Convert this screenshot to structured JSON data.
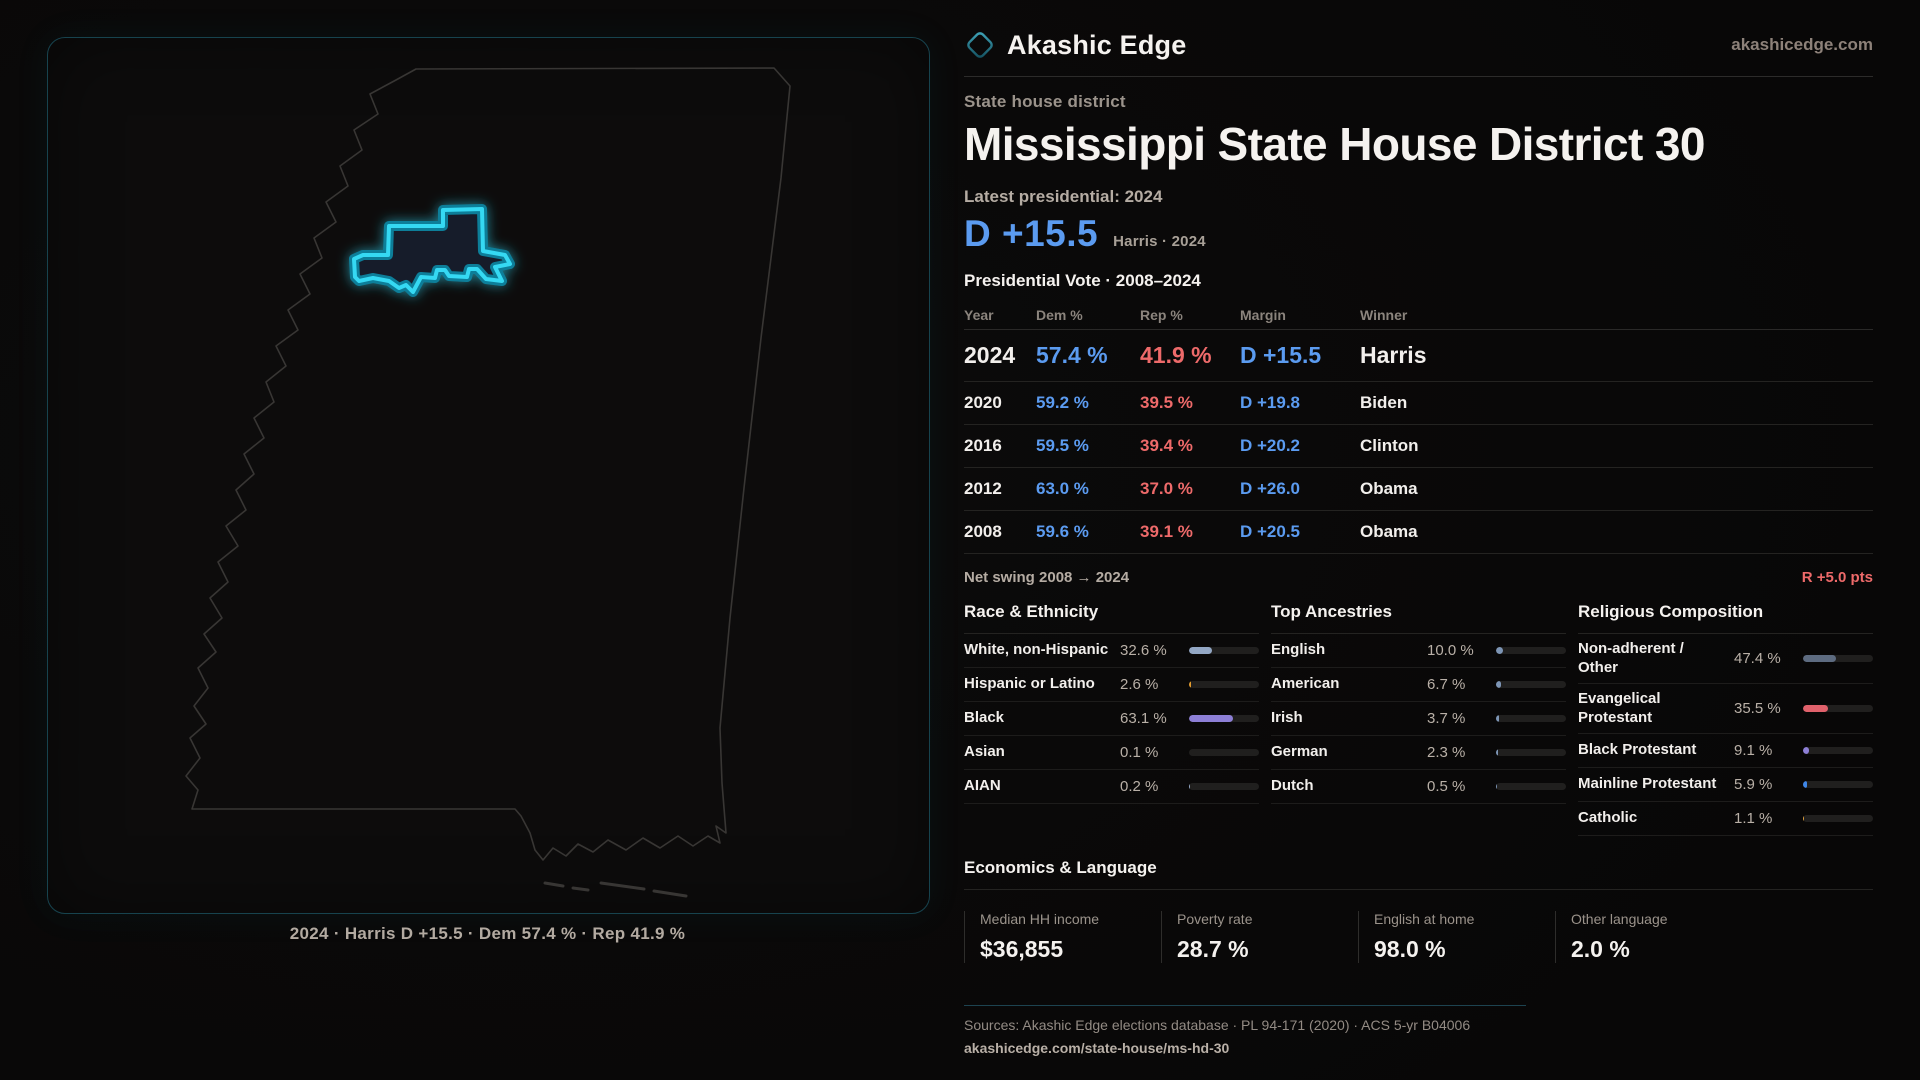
{
  "brand": {
    "name": "Akashic Edge",
    "domain": "akashicedge.com"
  },
  "hero": {
    "kicker": "State house district",
    "title": "Mississippi State House District 30",
    "latest_label": "Latest presidential: 2024",
    "margin_big": "D +15.5",
    "margin_sub": "Harris · 2024"
  },
  "table": {
    "title": "Presidential Vote · 2008–2024",
    "headers": {
      "year": "Year",
      "dem": "Dem %",
      "rep": "Rep %",
      "margin": "Margin",
      "winner": "Winner"
    },
    "rows": [
      {
        "year": "2024",
        "dem": "57.4 %",
        "rep": "41.9 %",
        "margin": "D +15.5",
        "winner": "Harris"
      },
      {
        "year": "2020",
        "dem": "59.2 %",
        "rep": "39.5 %",
        "margin": "D +19.8",
        "winner": "Biden"
      },
      {
        "year": "2016",
        "dem": "59.5 %",
        "rep": "39.4 %",
        "margin": "D +20.2",
        "winner": "Clinton"
      },
      {
        "year": "2012",
        "dem": "63.0 %",
        "rep": "37.0 %",
        "margin": "D +26.0",
        "winner": "Obama"
      },
      {
        "year": "2008",
        "dem": "59.6 %",
        "rep": "39.1 %",
        "margin": "D +20.5",
        "winner": "Obama"
      }
    ],
    "swing_label": "Net swing 2008 → 2024",
    "swing_value": "R +5.0 pts"
  },
  "race": {
    "title": "Race & Ethnicity",
    "rows": [
      {
        "label": "White, non-Hispanic",
        "value": "32.6 %",
        "pct": 32.6,
        "color": "#93a7c4"
      },
      {
        "label": "Hispanic or Latino",
        "value": "2.6 %",
        "pct": 2.6,
        "color": "#e09a2e"
      },
      {
        "label": "Black",
        "value": "63.1 %",
        "pct": 63.1,
        "color": "#8d7fd6"
      },
      {
        "label": "Asian",
        "value": "0.1 %",
        "pct": 0.1,
        "color": "#93a7c4"
      },
      {
        "label": "AIAN",
        "value": "0.2 %",
        "pct": 0.2,
        "color": "#93a7c4"
      }
    ]
  },
  "ancestries": {
    "title": "Top Ancestries",
    "rows": [
      {
        "label": "English",
        "value": "10.0 %",
        "pct": 10.0,
        "color": "#7d95b5"
      },
      {
        "label": "American",
        "value": "6.7 %",
        "pct": 6.7,
        "color": "#7d95b5"
      },
      {
        "label": "Irish",
        "value": "3.7 %",
        "pct": 3.7,
        "color": "#7d95b5"
      },
      {
        "label": "German",
        "value": "2.3 %",
        "pct": 2.3,
        "color": "#7d95b5"
      },
      {
        "label": "Dutch",
        "value": "0.5 %",
        "pct": 0.5,
        "color": "#7d95b5"
      }
    ]
  },
  "religion": {
    "title": "Religious Composition",
    "rows": [
      {
        "label": "Non-adherent / Other",
        "value": "47.4 %",
        "pct": 47.4,
        "color": "#5d6b80"
      },
      {
        "label": "Evangelical Protestant",
        "value": "35.5 %",
        "pct": 35.5,
        "color": "#e0616b"
      },
      {
        "label": "Black Protestant",
        "value": "9.1 %",
        "pct": 9.1,
        "color": "#8d7fd6"
      },
      {
        "label": "Mainline Protestant",
        "value": "5.9 %",
        "pct": 5.9,
        "color": "#3f87e8"
      },
      {
        "label": "Catholic",
        "value": "1.1 %",
        "pct": 1.1,
        "color": "#e0a23e"
      }
    ]
  },
  "economics": {
    "title": "Economics & Language",
    "stats": [
      {
        "label": "Median HH income",
        "value": "$36,855"
      },
      {
        "label": "Poverty rate",
        "value": "28.7 %"
      },
      {
        "label": "English at home",
        "value": "98.0 %"
      },
      {
        "label": "Other language",
        "value": "2.0 %"
      }
    ]
  },
  "map": {
    "caption": "2024 · Harris D +15.5 · Dem 57.4 % · Rep 41.9 %"
  },
  "footer": {
    "sources": "Sources: Akashic Edge elections database · PL 94-171 (2020) · ACS 5-yr B04006",
    "link": "akashicedge.com/state-house/ms-hd-30"
  },
  "colors": {
    "dem_blue": "#5b9bf0",
    "rep_red": "#ee6a6a",
    "district_cyan": "#36d9f3"
  }
}
